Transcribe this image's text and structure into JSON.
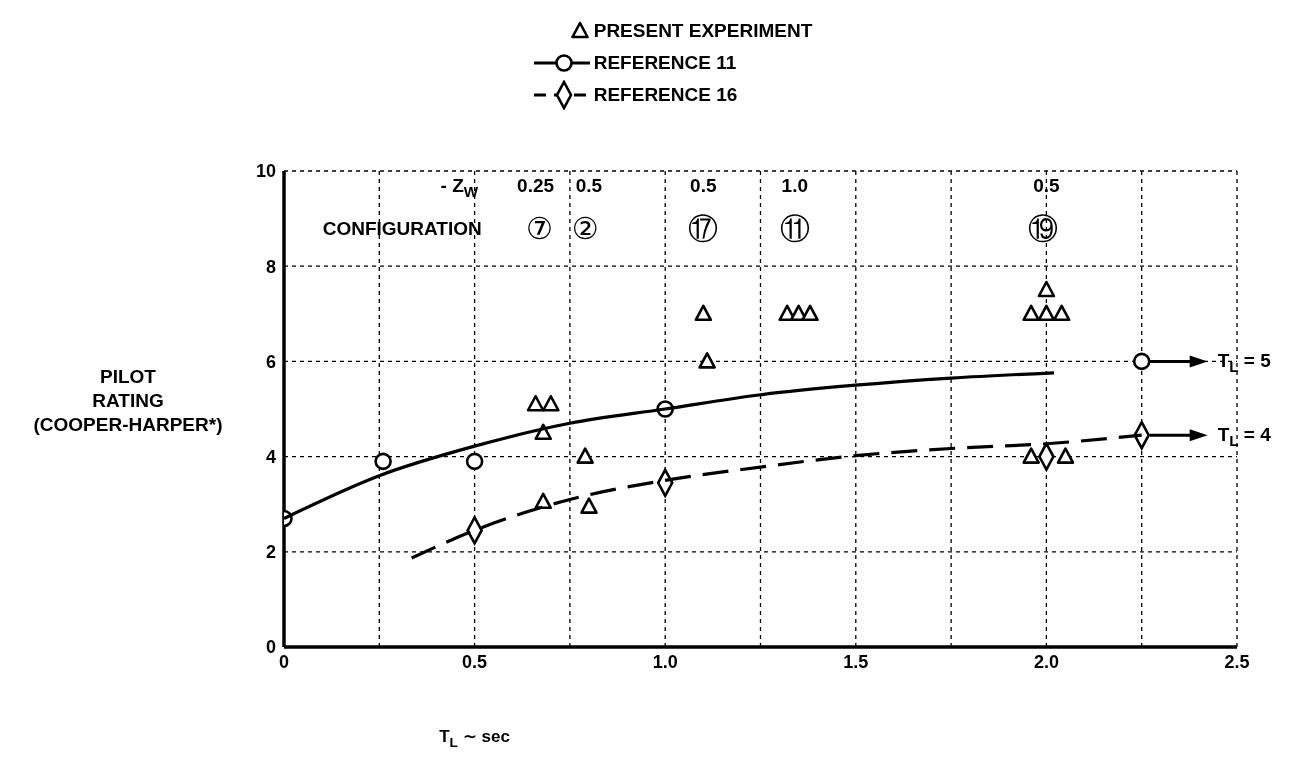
{
  "chart_data": {
    "type": "scatter",
    "legend": "top",
    "grid": true,
    "xlabel": "T$_{L}$ ∼ sec",
    "ylabel": "PILOT\nRATING\n(COOPER-HARPER*)",
    "xlim": [
      0,
      2.5
    ],
    "ylim": [
      0,
      10
    ],
    "xticks": [
      0,
      {
        "value": 0.25,
        "label": null
      },
      {
        "value": 0.5,
        "label": "0.5"
      },
      {
        "value": 0.75,
        "label": null
      },
      {
        "value": 1,
        "label": "1.0"
      },
      {
        "value": 1.25,
        "label": null
      },
      {
        "value": 1.5,
        "label": "1.5"
      },
      {
        "value": 1.75,
        "label": null
      },
      {
        "value": 2,
        "label": "2.0"
      },
      {
        "value": 2.25,
        "label": null
      },
      {
        "value": 2.5,
        "label": "2.5"
      }
    ],
    "yticks": [
      0,
      2,
      4,
      6,
      8,
      10
    ],
    "series": [
      {
        "name": "PRESENT EXPERIMENT",
        "marker": "triangle",
        "color": "#000000",
        "x": [
          0.66,
          0.7,
          0.68,
          0.79,
          0.68,
          0.8,
          1.1,
          1.11,
          1.32,
          1.35,
          1.38,
          1.96,
          2.0,
          2.04,
          2.0,
          1.96,
          2.05
        ],
        "values": [
          5.1,
          5.1,
          4.5,
          4.0,
          3.05,
          2.95,
          7.0,
          6.0,
          7.0,
          7.0,
          7.0,
          7.0,
          7.0,
          7.0,
          7.5,
          4.0,
          4.0
        ]
      },
      {
        "name": "REFERENCE 11",
        "marker": "circle",
        "color": "#000000",
        "x": [
          0,
          0.26,
          0.5,
          1.0,
          2.25
        ],
        "values": [
          2.7,
          3.9,
          3.9,
          5.0,
          6.0
        ]
      },
      {
        "type": "line",
        "line_style": "solid",
        "marker": "none",
        "color": "#000000",
        "x": [
          0,
          0.25,
          0.5,
          0.75,
          1.0,
          1.25,
          1.5,
          1.75,
          2.02
        ],
        "values": [
          2.7,
          3.6,
          4.22,
          4.7,
          5.0,
          5.3,
          5.5,
          5.65,
          5.76
        ]
      },
      {
        "name": "REFERENCE 16",
        "marker": "diamond",
        "color": "#000000",
        "x": [
          0.5,
          1.0,
          2.0,
          2.25
        ],
        "values": [
          2.45,
          3.45,
          4.0,
          4.45
        ]
      },
      {
        "type": "line",
        "line_style": "dashed",
        "marker": "none",
        "color": "#000000",
        "x": [
          0.335,
          0.5,
          0.75,
          1.0,
          1.25,
          1.5,
          1.75,
          2.0,
          2.25
        ],
        "values": [
          1.87,
          2.45,
          3.1,
          3.5,
          3.78,
          4.02,
          4.17,
          4.27,
          4.45
        ]
      }
    ],
    "annotations": [
      "- Z$_{W}$",
      "0.25",
      "0.5",
      "0.5",
      "1.0",
      "0.5",
      "CONFIGURATION",
      "⑦",
      "②",
      "⑰",
      "⑪",
      "⑲",
      "T$_{L}$ = 5",
      "T$_{L}$ = 4"
    ]
  }
}
